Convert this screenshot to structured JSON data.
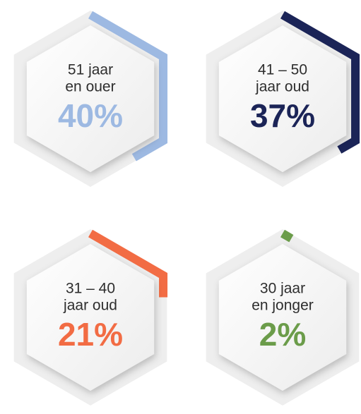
{
  "chart_data": {
    "type": "hex-progress",
    "categories": [
      [
        "51 jaar",
        "en ouer"
      ],
      [
        "41 – 50",
        "jaar oud"
      ],
      [
        "31 – 40",
        "jaar oud"
      ],
      [
        "30 jaar",
        "en jonger"
      ]
    ],
    "values": [
      40,
      37,
      21,
      2
    ],
    "value_labels": [
      "40%",
      "37%",
      "21%",
      "2%"
    ],
    "colors": [
      "#9db9e2",
      "#1b2457",
      "#f26c44",
      "#6b9c4a"
    ]
  }
}
